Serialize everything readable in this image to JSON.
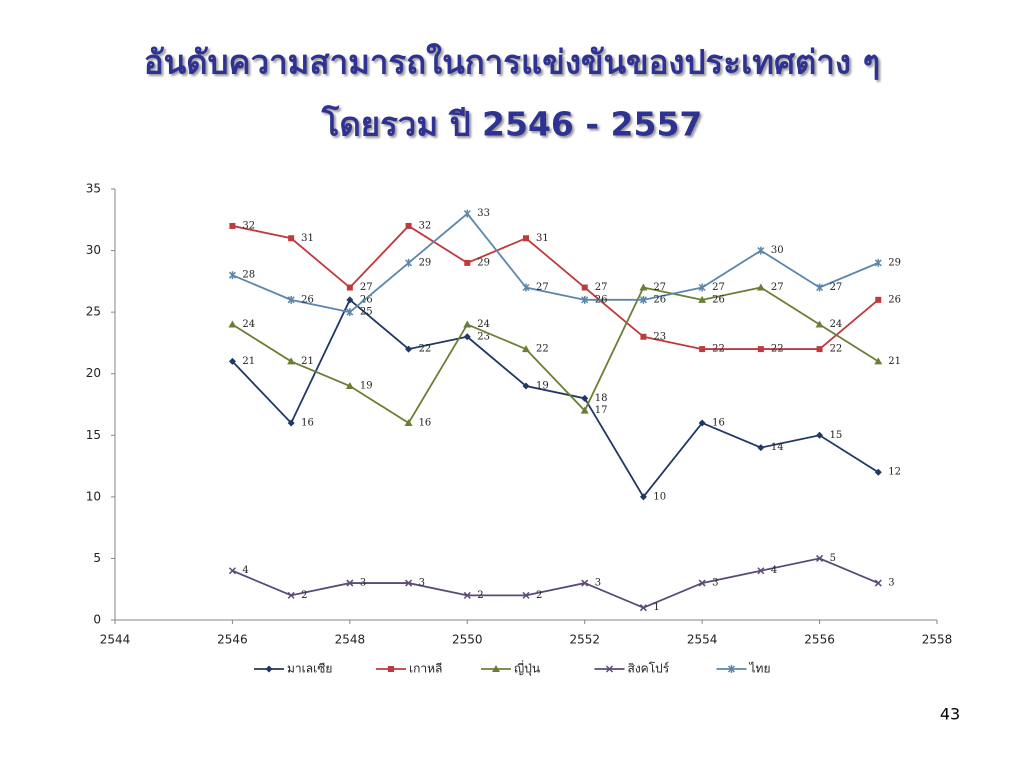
{
  "chart_data": {
    "type": "line",
    "title": "อันดับความสามารถในการแข่งขันของประเทศต่าง ๆ",
    "subtitle": "โดยรวม ปี 2546 - 2557",
    "x": [
      2546,
      2547,
      2548,
      2549,
      2550,
      2551,
      2552,
      2553,
      2554,
      2555,
      2556,
      2557
    ],
    "xlim": [
      2544,
      2558
    ],
    "xticks": [
      2544,
      2546,
      2548,
      2550,
      2552,
      2554,
      2556,
      2558
    ],
    "ylim": [
      0,
      35
    ],
    "yticks": [
      0,
      5,
      10,
      15,
      20,
      25,
      30,
      35
    ],
    "grid": false,
    "legend": "bottom",
    "series": [
      {
        "name": "มาเลเซีย",
        "color": "#1f3864",
        "values": [
          21,
          16,
          26,
          22,
          23,
          19,
          18,
          10,
          16,
          14,
          15,
          12
        ]
      },
      {
        "name": "เกาหลี",
        "color": "#c0393b",
        "values": [
          32,
          31,
          27,
          32,
          29,
          31,
          27,
          23,
          22,
          22,
          22,
          26
        ]
      },
      {
        "name": "ญี่ปุ่น",
        "color": "#6b7f34",
        "values": [
          24,
          21,
          19,
          16,
          24,
          22,
          17,
          27,
          26,
          27,
          24,
          21
        ]
      },
      {
        "name": "สิงคโปร์",
        "color": "#5a4a78",
        "values": [
          4,
          2,
          3,
          3,
          2,
          2,
          3,
          1,
          3,
          4,
          5,
          3
        ]
      },
      {
        "name": "ไทย",
        "color": "#5b87ad",
        "values": [
          28,
          26,
          25,
          29,
          33,
          27,
          26,
          26,
          27,
          30,
          27,
          29
        ]
      }
    ]
  },
  "slide_number": "43"
}
